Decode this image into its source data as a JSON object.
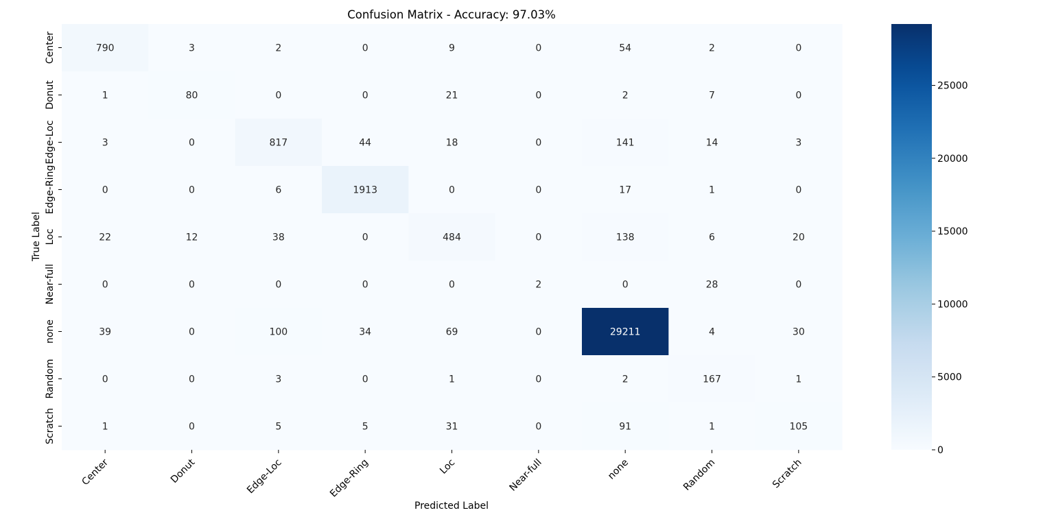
{
  "chart_data": {
    "type": "heatmap",
    "title": "Confusion Matrix - Accuracy: 97.03%",
    "xlabel": "Predicted Label",
    "ylabel": "True Label",
    "x_categories": [
      "Center",
      "Donut",
      "Edge-Loc",
      "Edge-Ring",
      "Loc",
      "Near-full",
      "none",
      "Random",
      "Scratch"
    ],
    "y_categories": [
      "Center",
      "Donut",
      "Edge-Loc",
      "Edge-Ring",
      "Loc",
      "Near-full",
      "none",
      "Random",
      "Scratch"
    ],
    "values": [
      [
        790,
        3,
        2,
        0,
        9,
        0,
        54,
        2,
        0
      ],
      [
        1,
        80,
        0,
        0,
        21,
        0,
        2,
        7,
        0
      ],
      [
        3,
        0,
        817,
        44,
        18,
        0,
        141,
        14,
        3
      ],
      [
        0,
        0,
        6,
        1913,
        0,
        0,
        17,
        1,
        0
      ],
      [
        22,
        12,
        38,
        0,
        484,
        0,
        138,
        6,
        20
      ],
      [
        0,
        0,
        0,
        0,
        0,
        2,
        0,
        28,
        0
      ],
      [
        39,
        0,
        100,
        34,
        69,
        0,
        29211,
        4,
        30
      ],
      [
        0,
        0,
        3,
        0,
        1,
        0,
        2,
        167,
        1
      ],
      [
        1,
        0,
        5,
        5,
        31,
        0,
        91,
        1,
        105
      ]
    ],
    "colormap": "Blues",
    "colorbar": {
      "range": [
        0,
        29211
      ],
      "ticks": [
        0,
        5000,
        10000,
        15000,
        20000,
        25000
      ],
      "tick_labels": [
        "0",
        "5000",
        "10000",
        "15000",
        "20000",
        "25000"
      ]
    },
    "colors": {
      "low": "#f7fbff",
      "high": "#08306b",
      "text_dark": "#262626",
      "text_light": "#ffffff"
    },
    "grid": false,
    "legend": "colorbar-right"
  }
}
